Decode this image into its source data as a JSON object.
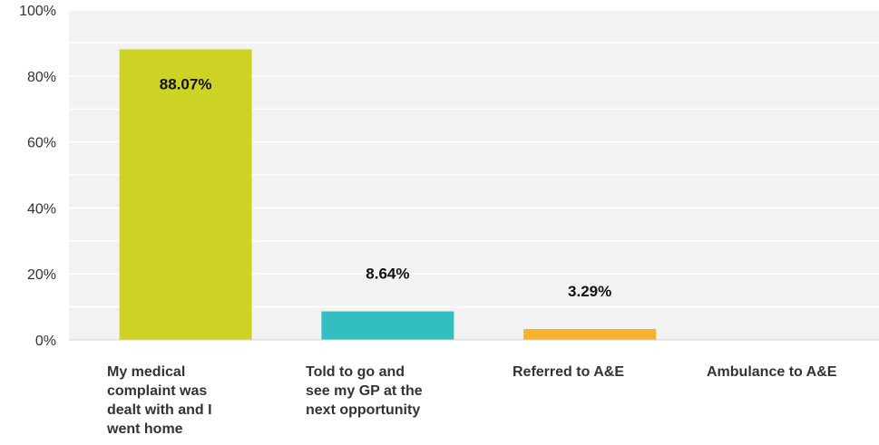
{
  "chart_data": {
    "type": "bar",
    "categories": [
      "My medical\ncomplaint was\ndealt with and I\nwent home",
      "Told to go and\nsee my GP at the\nnext opportunity",
      "Referred to A&E",
      "Ambulance to A&E"
    ],
    "values": [
      88.07,
      8.64,
      3.29,
      0
    ],
    "data_labels": [
      "88.07%",
      "8.64%",
      "3.29%",
      ""
    ],
    "colors": [
      "#cdd325",
      "#33bfbf",
      "#f7b12a",
      "#cccccc"
    ],
    "ylim": [
      0,
      100
    ],
    "yticks": [
      0,
      20,
      40,
      60,
      80,
      100
    ],
    "ytick_labels": [
      "0%",
      "20%",
      "40%",
      "60%",
      "80%",
      "100%"
    ],
    "grid": true,
    "background": "#f2f2f2",
    "title": "",
    "xlabel": "",
    "ylabel": ""
  }
}
